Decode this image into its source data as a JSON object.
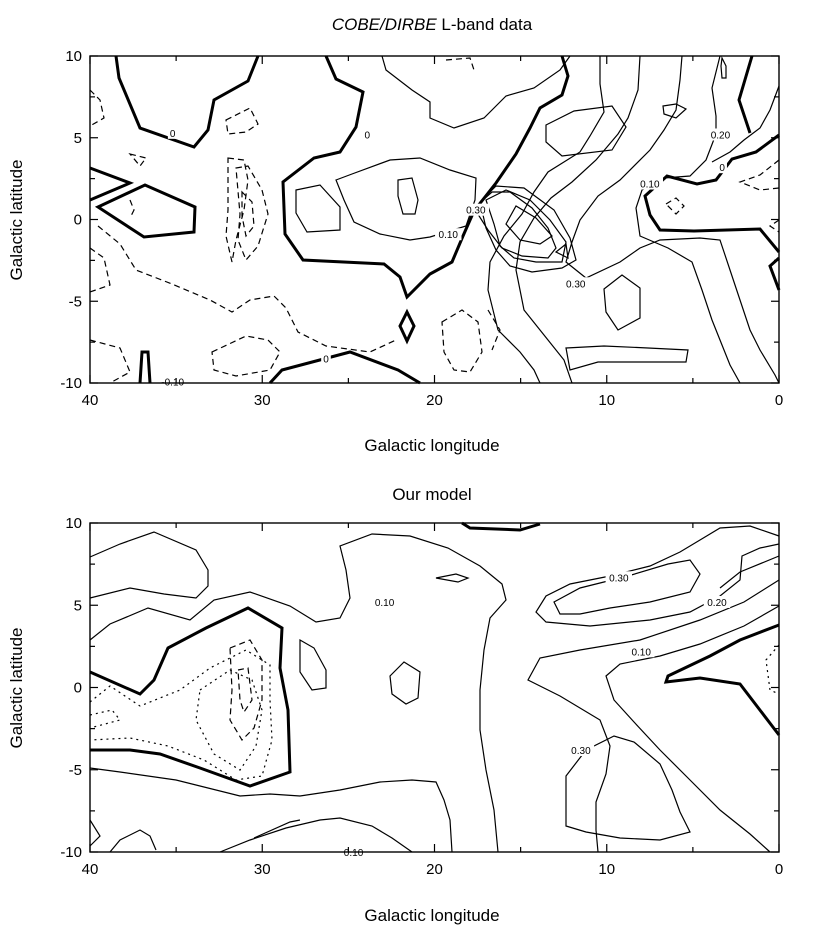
{
  "chart_data": [
    {
      "type": "contour",
      "title_italic": "COBE/DIRBE",
      "title_rest": " L-band data",
      "xlabel": "Galactic longitude",
      "ylabel": "Galactic latitude",
      "xlim": [
        40,
        0
      ],
      "ylim": [
        -10,
        10
      ],
      "xticks": [
        "40",
        "30",
        "20",
        "10",
        "0"
      ],
      "yticks": [
        "10",
        "5",
        "0",
        "-5",
        "-10"
      ],
      "contour_labels": [
        {
          "text": "0",
          "x": 35.2,
          "y": 5.3
        },
        {
          "text": "0",
          "x": 23.9,
          "y": 5.2
        },
        {
          "text": "0.20",
          "x": 3.4,
          "y": 5.2
        },
        {
          "text": "0",
          "x": 3.3,
          "y": 3.2
        },
        {
          "text": "0.10",
          "x": 7.5,
          "y": 2.2
        },
        {
          "text": "0.30",
          "x": 17.6,
          "y": 0.6
        },
        {
          "text": "0.10",
          "x": 19.2,
          "y": -0.9
        },
        {
          "text": "0.30",
          "x": 11.8,
          "y": -3.9
        },
        {
          "text": "0",
          "x": 26.3,
          "y": -8.5
        },
        {
          "text": "-0.10",
          "x": 35.2,
          "y": -9.9
        }
      ]
    },
    {
      "type": "contour",
      "title": "Our model",
      "xlabel": "Galactic longitude",
      "ylabel": "Galactic latitude",
      "xlim": [
        40,
        0
      ],
      "ylim": [
        -10,
        10
      ],
      "xticks": [
        "40",
        "30",
        "20",
        "10",
        "0"
      ],
      "yticks": [
        "10",
        "5",
        "0",
        "-5",
        "-10"
      ],
      "contour_labels": [
        {
          "text": "0.30",
          "x": 9.3,
          "y": 6.7
        },
        {
          "text": "0.10",
          "x": 22.9,
          "y": 5.2
        },
        {
          "text": "0.20",
          "x": 3.6,
          "y": 5.2
        },
        {
          "text": "0.10",
          "x": 8.0,
          "y": 2.2
        },
        {
          "text": "0.30",
          "x": 11.5,
          "y": -3.8
        },
        {
          "text": "0.10",
          "x": 24.7,
          "y": -10.0
        }
      ]
    }
  ]
}
